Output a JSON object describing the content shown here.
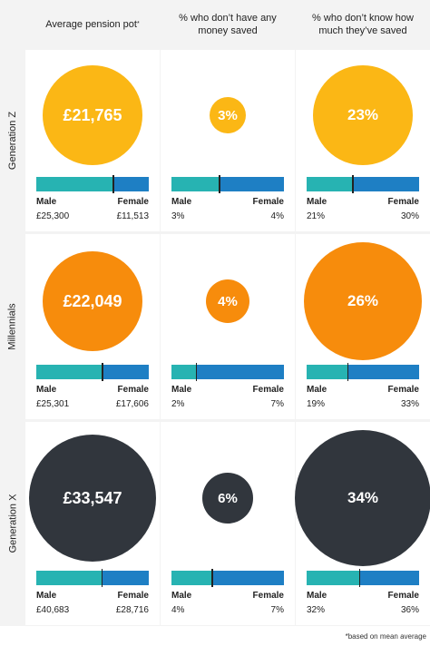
{
  "colors": {
    "genz": "#fbb715",
    "millennials": "#f78c0c",
    "genx": "#31363d",
    "male_bar": "#27b3b2",
    "female_bar": "#1e7fc4",
    "grid": "#f3f3f3"
  },
  "labels": {
    "male": "Male",
    "female": "Female"
  },
  "footnote": "*based on mean average",
  "chart_data": {
    "type": "table",
    "columns": [
      {
        "label": "Average pension pot",
        "footnote_mark": "*"
      },
      {
        "label": "% who don’t have any money saved"
      },
      {
        "label": "% who don’t know how much they’ve saved"
      }
    ],
    "rows": [
      {
        "label": "Generation Z",
        "cells": [
          {
            "total": 21765,
            "total_label": "£21,765",
            "male": 25300,
            "male_label": "£25,300",
            "female": 11513,
            "female_label": "£11,513"
          },
          {
            "total": 3,
            "total_label": "3%",
            "male": 3,
            "male_label": "3%",
            "female": 4,
            "female_label": "4%"
          },
          {
            "total": 23,
            "total_label": "23%",
            "male": 21,
            "male_label": "21%",
            "female": 30,
            "female_label": "30%"
          }
        ]
      },
      {
        "label": "Millennials",
        "cells": [
          {
            "total": 22049,
            "total_label": "£22,049",
            "male": 25301,
            "male_label": "£25,301",
            "female": 17606,
            "female_label": "£17,606"
          },
          {
            "total": 4,
            "total_label": "4%",
            "male": 2,
            "male_label": "2%",
            "female": 7,
            "female_label": "7%"
          },
          {
            "total": 26,
            "total_label": "26%",
            "male": 19,
            "male_label": "19%",
            "female": 33,
            "female_label": "33%"
          }
        ]
      },
      {
        "label": "Generation  X",
        "cells": [
          {
            "total": 33547,
            "total_label": "£33,547",
            "male": 40683,
            "male_label": "£40,683",
            "female": 28716,
            "female_label": "£28,716"
          },
          {
            "total": 6,
            "total_label": "6%",
            "male": 4,
            "male_label": "4%",
            "female": 7,
            "female_label": "7%"
          },
          {
            "total": 34,
            "total_label": "34%",
            "male": 32,
            "male_label": "32%",
            "female": 36,
            "female_label": "36%"
          }
        ]
      }
    ]
  }
}
